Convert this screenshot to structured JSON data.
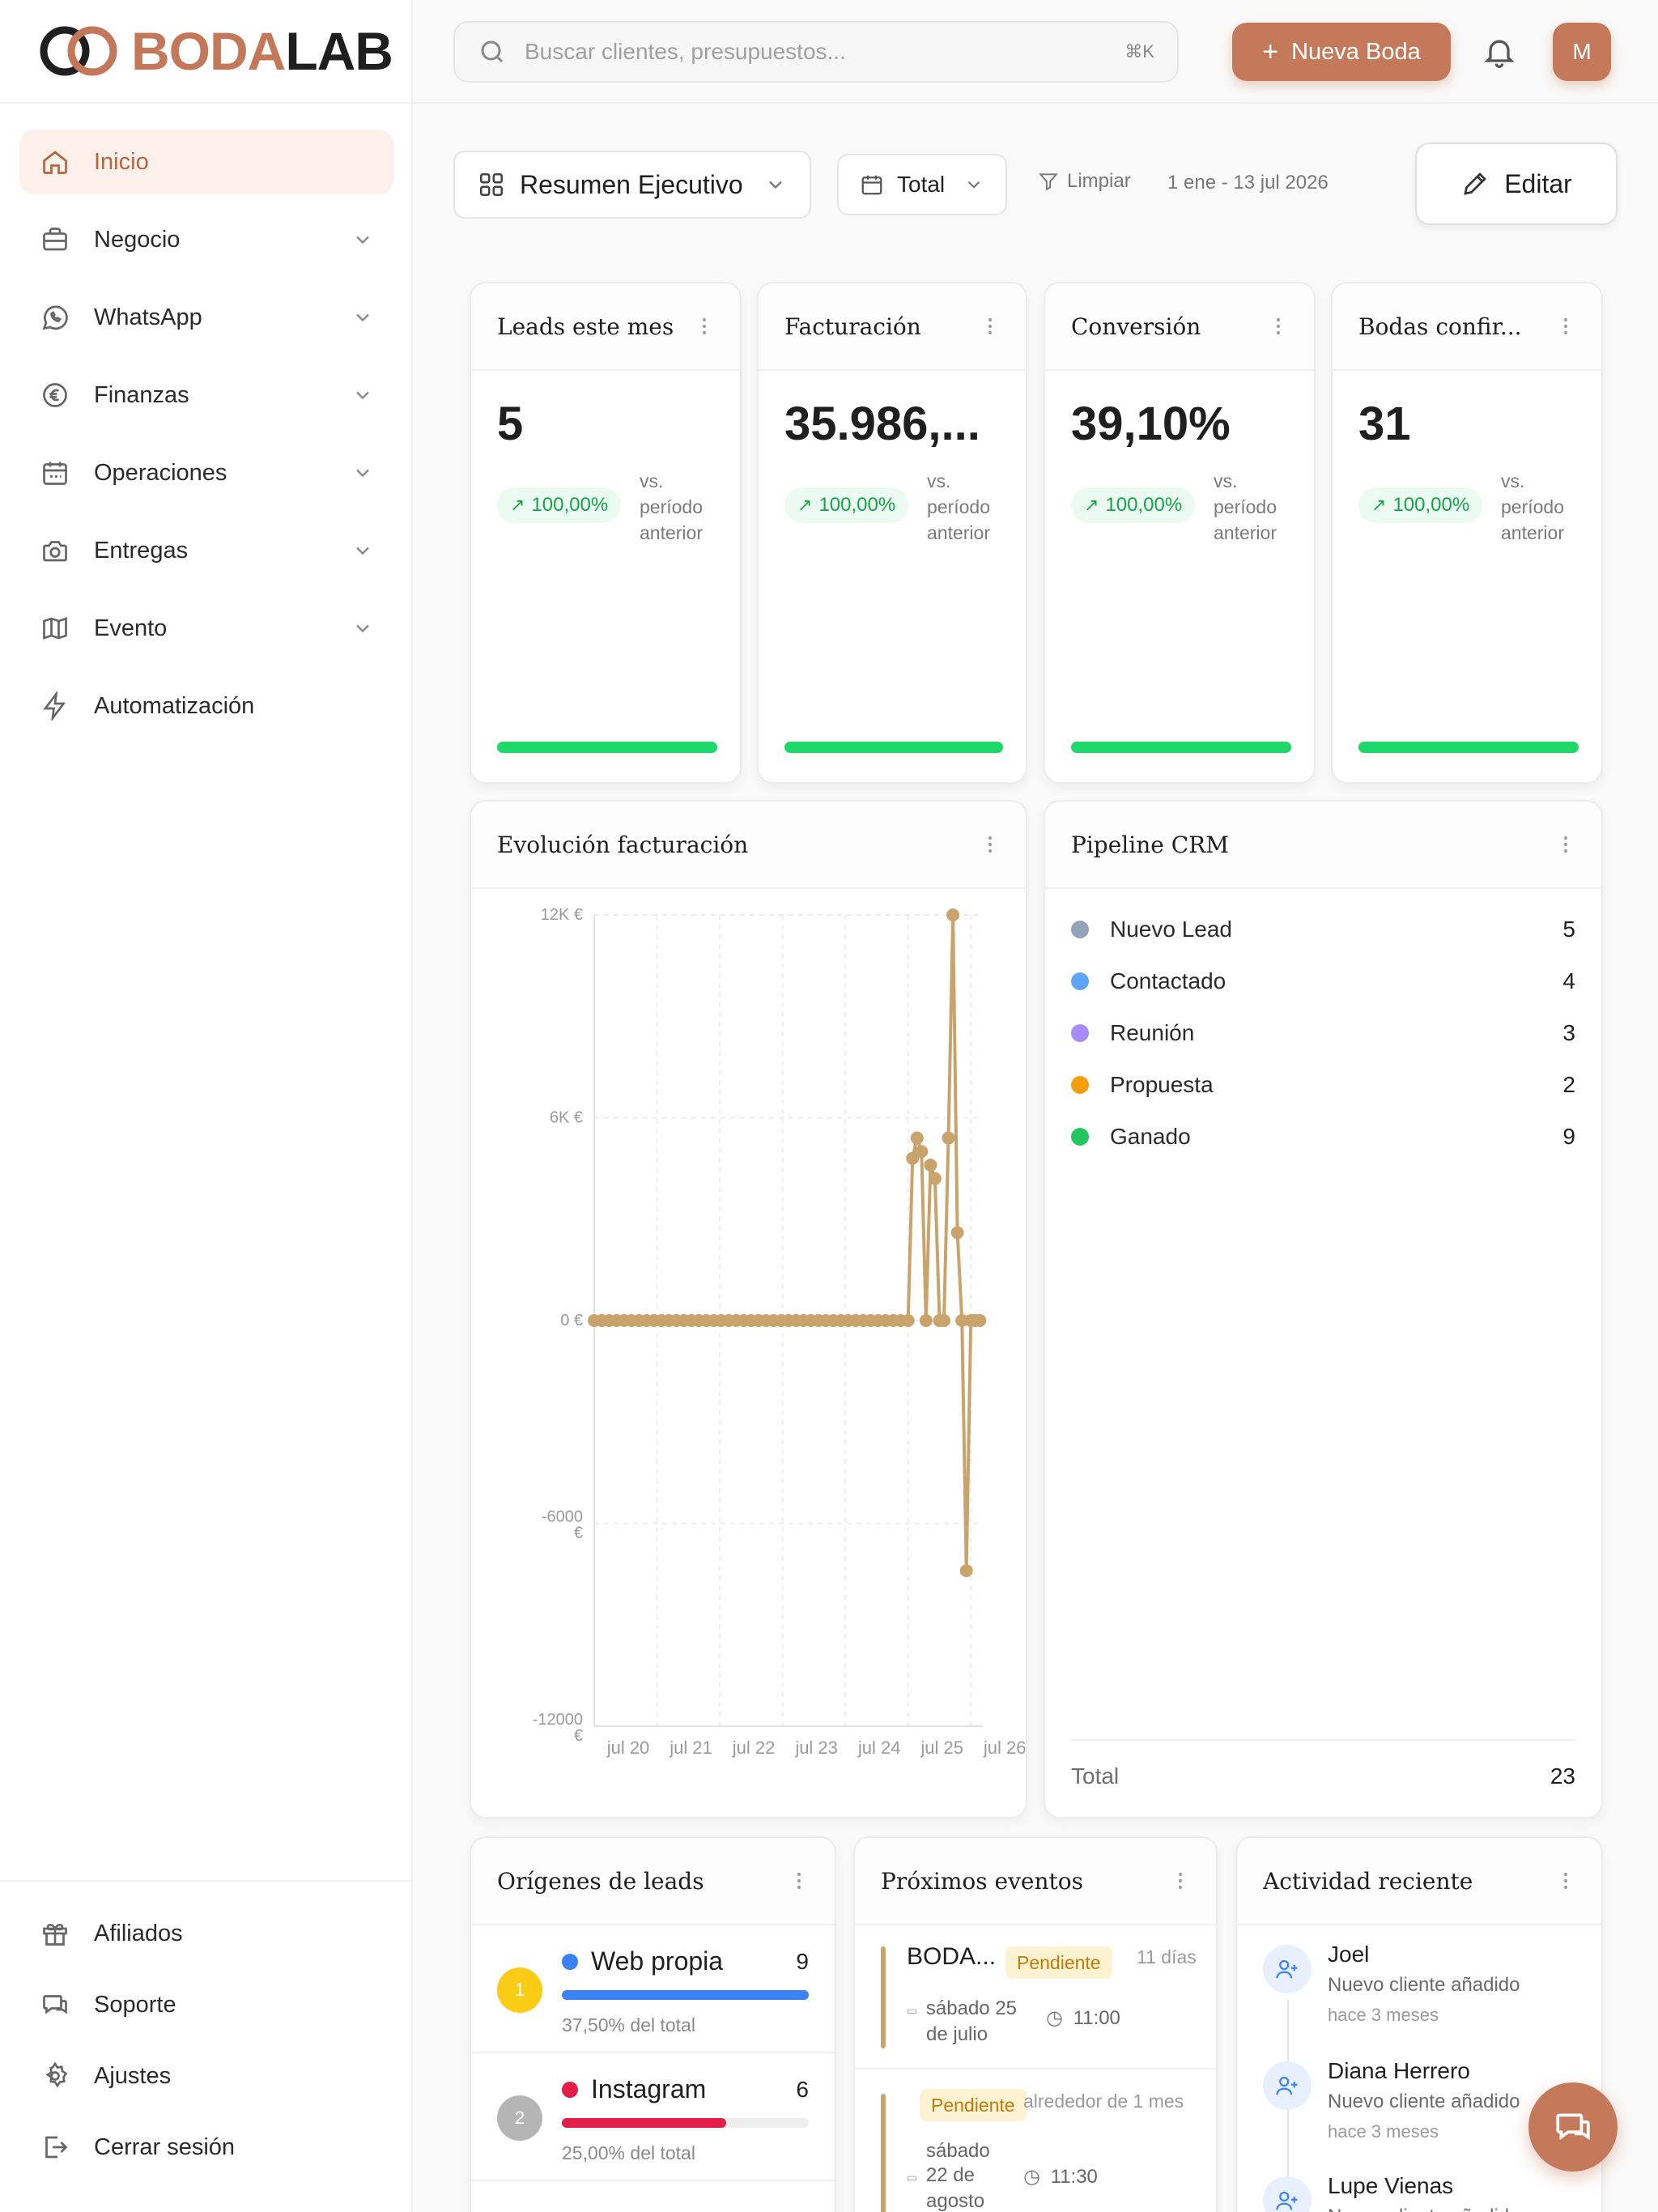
{
  "brand": {
    "part1": "BODA",
    "part2": "LAB"
  },
  "sidebar": {
    "items": [
      {
        "label": "Inicio",
        "icon": "home-icon",
        "active": true,
        "chevron": false
      },
      {
        "label": "Negocio",
        "icon": "briefcase-icon",
        "chevron": true
      },
      {
        "label": "WhatsApp",
        "icon": "whatsapp-icon",
        "chevron": true
      },
      {
        "label": "Finanzas",
        "icon": "euro-icon",
        "chevron": true
      },
      {
        "label": "Operaciones",
        "icon": "calendar-icon",
        "chevron": true
      },
      {
        "label": "Entregas",
        "icon": "camera-icon",
        "chevron": true
      },
      {
        "label": "Evento",
        "icon": "map-icon",
        "chevron": true
      },
      {
        "label": "Automatización",
        "icon": "lightning-icon",
        "chevron": false
      }
    ],
    "bottom": [
      {
        "label": "Afiliados",
        "icon": "gift-icon"
      },
      {
        "label": "Soporte",
        "icon": "support-icon"
      },
      {
        "label": "Ajustes",
        "icon": "gear-icon"
      },
      {
        "label": "Cerrar sesión",
        "icon": "logout-icon"
      }
    ]
  },
  "topbar": {
    "search_placeholder": "Buscar clientes, presupuestos...",
    "shortcut": "⌘K",
    "new_button": "Nueva Boda",
    "avatar_initial": "M"
  },
  "toolbar": {
    "dashboard": "Resumen Ejecutivo",
    "period": "Total",
    "clear": "Limpiar",
    "date_range": "1 ene - 13 jul 2026",
    "edit": "Editar"
  },
  "kpis": [
    {
      "title": "Leads este mes",
      "value": "5",
      "change": "100,00%",
      "comparison": "vs. período anterior",
      "progress": 1.0
    },
    {
      "title": "Facturación",
      "value": "35.986,...",
      "change": "100,00%",
      "comparison": "vs. período anterior",
      "progress": 1.0
    },
    {
      "title": "Conversión",
      "value": "39,10%",
      "change": "100,00%",
      "comparison": "vs. período anterior",
      "progress": 1.0
    },
    {
      "title": "Bodas confir...",
      "value": "31",
      "change": "100,00%",
      "comparison": "vs. período anterior",
      "progress": 1.0
    }
  ],
  "chart_card": {
    "title": "Evolución facturación"
  },
  "chart_data": {
    "type": "line",
    "title": "Evolución facturación",
    "xlabel": "",
    "ylabel": "",
    "x_ticks": [
      "jul 20",
      "jul 21",
      "jul 22",
      "jul 23",
      "jul 24",
      "jul 25",
      "jul 26"
    ],
    "y_ticks": [
      "12K €",
      "6K €",
      "0 €",
      "-6000 €",
      "-12000 €"
    ],
    "ylim": [
      -12000,
      12000
    ],
    "xlim": [
      0,
      26
    ],
    "color": "#c8a46c",
    "grid": true,
    "points": [
      [
        0,
        0
      ],
      [
        0.5,
        0
      ],
      [
        1,
        0
      ],
      [
        1.5,
        0
      ],
      [
        2,
        0
      ],
      [
        2.5,
        0
      ],
      [
        3,
        0
      ],
      [
        3.5,
        0
      ],
      [
        4,
        0
      ],
      [
        4.5,
        0
      ],
      [
        5,
        0
      ],
      [
        5.5,
        0
      ],
      [
        6,
        0
      ],
      [
        6.5,
        0
      ],
      [
        7,
        0
      ],
      [
        7.5,
        0
      ],
      [
        8,
        0
      ],
      [
        8.5,
        0
      ],
      [
        9,
        0
      ],
      [
        9.5,
        0
      ],
      [
        10,
        0
      ],
      [
        10.5,
        0
      ],
      [
        11,
        0
      ],
      [
        11.5,
        0
      ],
      [
        12,
        0
      ],
      [
        12.5,
        0
      ],
      [
        13,
        0
      ],
      [
        13.5,
        0
      ],
      [
        14,
        0
      ],
      [
        14.5,
        0
      ],
      [
        15,
        0
      ],
      [
        15.5,
        0
      ],
      [
        16,
        0
      ],
      [
        16.5,
        0
      ],
      [
        17,
        0
      ],
      [
        17.5,
        0
      ],
      [
        18,
        0
      ],
      [
        18.5,
        0
      ],
      [
        19,
        0
      ],
      [
        19.5,
        0
      ],
      [
        20,
        0
      ],
      [
        20.5,
        0
      ],
      [
        21,
        0
      ],
      [
        21.3,
        4800
      ],
      [
        21.6,
        5400
      ],
      [
        21.9,
        5000
      ],
      [
        22.2,
        0
      ],
      [
        22.5,
        4600
      ],
      [
        22.8,
        4200
      ],
      [
        23.1,
        0
      ],
      [
        23.4,
        0
      ],
      [
        23.7,
        5400
      ],
      [
        24.0,
        12000
      ],
      [
        24.3,
        2600
      ],
      [
        24.6,
        0
      ],
      [
        24.9,
        -7400
      ],
      [
        25.2,
        0
      ],
      [
        25.5,
        0
      ],
      [
        25.8,
        0
      ]
    ]
  },
  "pipeline": {
    "title": "Pipeline CRM",
    "stages": [
      {
        "name": "Nuevo Lead",
        "count": "5",
        "color": "#94a3b8"
      },
      {
        "name": "Contactado",
        "count": "4",
        "color": "#60a5fa"
      },
      {
        "name": "Reunión",
        "count": "3",
        "color": "#a78bfa"
      },
      {
        "name": "Propuesta",
        "count": "2",
        "color": "#f59e0b"
      },
      {
        "name": "Ganado",
        "count": "9",
        "color": "#22c55e"
      }
    ],
    "total_label": "Total",
    "total": "23"
  },
  "sources": {
    "title": "Orígenes de leads",
    "items": [
      {
        "rank": "1",
        "name": "Web propia",
        "count": "9",
        "pct": "37,50% del total",
        "share": 1.0,
        "color": "#3b82f6",
        "rank_color": "#facc15"
      },
      {
        "rank": "2",
        "name": "Instagram",
        "count": "6",
        "pct": "25,00% del total",
        "share": 0.667,
        "color": "#e11d48",
        "rank_color": "#b5b5b5"
      }
    ]
  },
  "events": {
    "title": "Próximos eventos",
    "items": [
      {
        "name": "BODA...",
        "status": "Pendiente",
        "when": "11 días",
        "date_line1": "sábado 25",
        "date_line2": "de julio",
        "time": "11:00"
      },
      {
        "status": "Pendiente",
        "when": "alrededor de 1 mes",
        "date_line1": "sábado",
        "date_line2": "22 de",
        "date_line3": "agosto",
        "time": "11:30"
      }
    ]
  },
  "activity": {
    "title": "Actividad reciente",
    "items": [
      {
        "name": "Joel",
        "desc": "Nuevo cliente añadido",
        "time": "hace 3 meses"
      },
      {
        "name": "Diana Herrero",
        "desc": "Nuevo cliente añadido",
        "time": "hace 3 meses"
      },
      {
        "name": "Lupe Vienas",
        "desc": "Nuevo cliente añadido",
        "time": ""
      }
    ]
  }
}
